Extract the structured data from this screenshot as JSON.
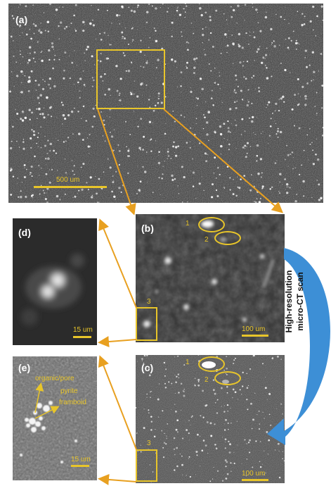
{
  "panels": {
    "a": {
      "label": "(a)",
      "scale": "500 um"
    },
    "b": {
      "label": "(b)",
      "scale": "100 um",
      "markers": [
        "1",
        "2",
        "3"
      ]
    },
    "c": {
      "label": "(c)",
      "scale": "100 um",
      "markers": [
        "1",
        "2",
        "3"
      ]
    },
    "d": {
      "label": "(d)",
      "scale": "15 um"
    },
    "e": {
      "label": "(e)",
      "scale": "15 um",
      "annotation_organic": "organic/pore",
      "annotation_pyrite_1": "pyrite",
      "annotation_pyrite_2": "framboid"
    }
  },
  "scan_arrow": {
    "line1": "High-resolution",
    "line2": "micro-CT scan"
  },
  "colors": {
    "annotation": "#e8c52a",
    "arrow": "#3d8fd6",
    "background": "#ffffff"
  }
}
